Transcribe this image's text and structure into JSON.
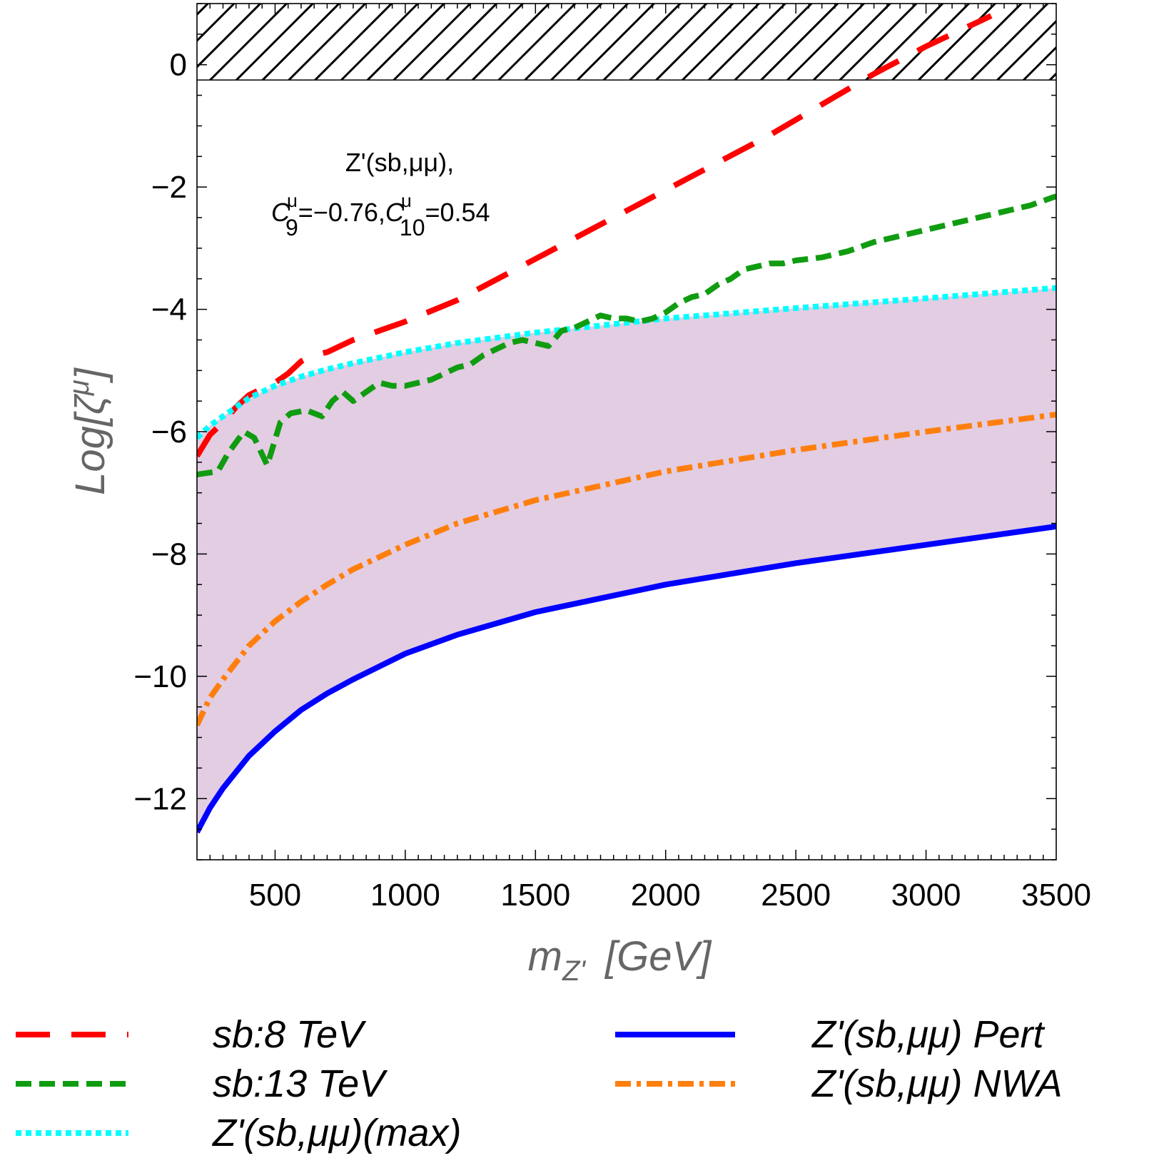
{
  "chart_data": {
    "type": "line",
    "xlabel": "m_{Z'}  [GeV]",
    "xlabel_main": "m",
    "xlabel_sub": "Z'",
    "xlabel_unit": "[GeV]",
    "ylabel": "Log[ζ^μ]",
    "ylabel_main": "Log[ζ",
    "ylabel_sup": "μ",
    "ylabel_close": "]",
    "xlim": [
      200,
      3500
    ],
    "ylim": [
      -13,
      1
    ],
    "x_ticks": [
      500,
      1000,
      1500,
      2000,
      2500,
      3000,
      3500
    ],
    "x_tick_labels": [
      "500",
      "1000",
      "1500",
      "2000",
      "2500",
      "3000",
      "3500"
    ],
    "y_ticks": [
      0,
      -2,
      -4,
      -6,
      -8,
      -10,
      -12
    ],
    "y_tick_labels": [
      "0",
      "−2",
      "−4",
      "−6",
      "−8",
      "−10",
      "−12"
    ],
    "excluded_region": {
      "y_from": -0.25,
      "y_to": 1,
      "pattern": "hatched"
    },
    "allowed_band": {
      "lower_series": "Z'(sb,μμ) Pert",
      "upper_series": "Z'(sb,μμ)(max)",
      "color": "#e3cde3"
    },
    "annotation": {
      "line1": "Z'(sb,μμ),",
      "c9_symbol": "C",
      "c9_sup": "μ",
      "c9_sub": "9",
      "c9_value": "=−0.76,",
      "c10_symbol": "C",
      "c10_sup": "μ",
      "c10_sub": "10",
      "c10_value": "=0.54"
    },
    "series": [
      {
        "name": "sb:8 TeV",
        "color": "#ff0000",
        "style": "long-dash",
        "x": [
          200,
          250,
          300,
          350,
          400,
          450,
          500,
          550,
          600,
          650,
          700,
          800,
          900,
          1000,
          1200,
          1400,
          1600,
          1800,
          2000,
          2200,
          2400,
          2600,
          2800,
          3000,
          3200,
          3250
        ],
        "y": [
          -6.4,
          -6.05,
          -5.85,
          -5.6,
          -5.4,
          -5.3,
          -5.2,
          -5.05,
          -4.85,
          -4.75,
          -4.7,
          -4.5,
          -4.35,
          -4.2,
          -3.85,
          -3.4,
          -2.95,
          -2.5,
          -2.05,
          -1.6,
          -1.15,
          -0.65,
          -0.15,
          0.3,
          0.7,
          0.8
        ]
      },
      {
        "name": "sb:13 TeV",
        "color": "#109c10",
        "style": "dashed",
        "x": [
          200,
          280,
          320,
          380,
          420,
          470,
          520,
          560,
          620,
          680,
          720,
          760,
          800,
          850,
          900,
          950,
          1000,
          1050,
          1100,
          1150,
          1200,
          1250,
          1300,
          1350,
          1400,
          1450,
          1500,
          1550,
          1600,
          1650,
          1700,
          1750,
          1800,
          1850,
          1900,
          1950,
          2000,
          2050,
          2100,
          2150,
          2200,
          2250,
          2300,
          2350,
          2400,
          2450,
          2500,
          2600,
          2700,
          2800,
          2900,
          3000,
          3100,
          3200,
          3300,
          3400,
          3500
        ],
        "y": [
          -6.7,
          -6.65,
          -6.35,
          -6.0,
          -6.1,
          -6.55,
          -5.85,
          -5.7,
          -5.65,
          -5.75,
          -5.5,
          -5.35,
          -5.5,
          -5.35,
          -5.2,
          -5.25,
          -5.25,
          -5.2,
          -5.15,
          -5.05,
          -4.95,
          -4.9,
          -4.75,
          -4.65,
          -4.55,
          -4.5,
          -4.55,
          -4.6,
          -4.35,
          -4.3,
          -4.2,
          -4.1,
          -4.15,
          -4.15,
          -4.2,
          -4.15,
          -4.05,
          -3.9,
          -3.8,
          -3.75,
          -3.6,
          -3.5,
          -3.35,
          -3.3,
          -3.25,
          -3.25,
          -3.2,
          -3.15,
          -3.05,
          -2.9,
          -2.8,
          -2.7,
          -2.6,
          -2.5,
          -2.4,
          -2.3,
          -2.15
        ]
      },
      {
        "name": "Z'(sb,μμ)(max)",
        "color": "#00ffff",
        "style": "dotted",
        "x": [
          200,
          250,
          300,
          400,
          500,
          600,
          700,
          800,
          1000,
          1200,
          1500,
          2000,
          2500,
          3000,
          3500
        ],
        "y": [
          -6.1,
          -5.9,
          -5.75,
          -5.45,
          -5.25,
          -5.1,
          -4.98,
          -4.88,
          -4.7,
          -4.55,
          -4.38,
          -4.15,
          -3.98,
          -3.82,
          -3.65
        ]
      },
      {
        "name": "Z'(sb,μμ) Pert",
        "color": "#0000ff",
        "style": "solid",
        "x": [
          200,
          250,
          300,
          400,
          500,
          600,
          700,
          800,
          1000,
          1200,
          1500,
          2000,
          2500,
          3000,
          3500
        ],
        "y": [
          -12.55,
          -12.15,
          -11.83,
          -11.3,
          -10.9,
          -10.55,
          -10.28,
          -10.05,
          -9.63,
          -9.32,
          -8.95,
          -8.5,
          -8.15,
          -7.85,
          -7.55
        ]
      },
      {
        "name": "Z'(sb,μμ) NWA",
        "color": "#ff7f0e",
        "style": "dash-dot",
        "x": [
          200,
          250,
          300,
          400,
          500,
          600,
          700,
          800,
          1000,
          1200,
          1500,
          2000,
          2500,
          3000,
          3500
        ],
        "y": [
          -10.8,
          -10.35,
          -10.05,
          -9.5,
          -9.1,
          -8.78,
          -8.5,
          -8.25,
          -7.85,
          -7.5,
          -7.12,
          -6.65,
          -6.3,
          -6.0,
          -5.72
        ]
      }
    ],
    "legend": {
      "placement": "bottom, two columns",
      "entries": [
        "sb:8 TeV",
        "sb:13 TeV",
        "Z'(sb,μμ)(max)",
        "Z'(sb,μμ) Pert",
        "Z'(sb,μμ) NWA"
      ]
    }
  }
}
